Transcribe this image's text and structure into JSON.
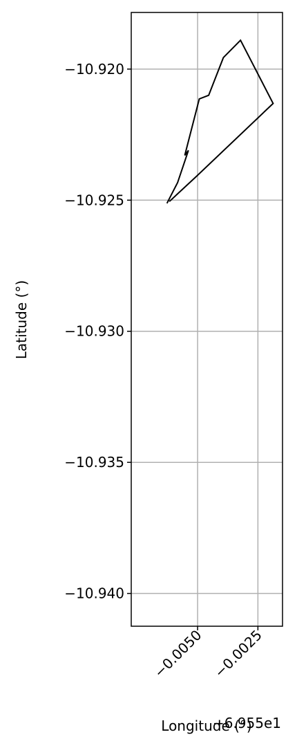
{
  "chart_data": {
    "type": "line",
    "xlabel": "Longitude (°)",
    "ylabel": "Latitude (°)",
    "x_offset_label": "−6.955e1",
    "xlim": [
      -0.00775,
      -0.00148
    ],
    "ylim": [
      -10.94125,
      -10.91784
    ],
    "xticks": [
      {
        "value": -0.005,
        "label": "−0.0050"
      },
      {
        "value": -0.0025,
        "label": "−0.0025"
      }
    ],
    "yticks": [
      {
        "value": -10.92,
        "label": "−10.920"
      },
      {
        "value": -10.925,
        "label": "−10.925"
      },
      {
        "value": -10.93,
        "label": "−10.930"
      },
      {
        "value": -10.935,
        "label": "−10.935"
      },
      {
        "value": -10.94,
        "label": "−10.940"
      }
    ],
    "grid": true,
    "series": [
      {
        "color": "#000000",
        "x": [
          -0.00627,
          -0.00583,
          -0.00538,
          -0.00553,
          -0.00493,
          -0.00454,
          -0.00393,
          -0.00322,
          -0.00187,
          -0.00508,
          -0.00617
        ],
        "y": [
          -10.92512,
          -10.92433,
          -10.9231,
          -10.92329,
          -10.92114,
          -10.921,
          -10.91956,
          -10.9189,
          -10.92131,
          -10.92412,
          -10.92505
        ]
      }
    ]
  }
}
